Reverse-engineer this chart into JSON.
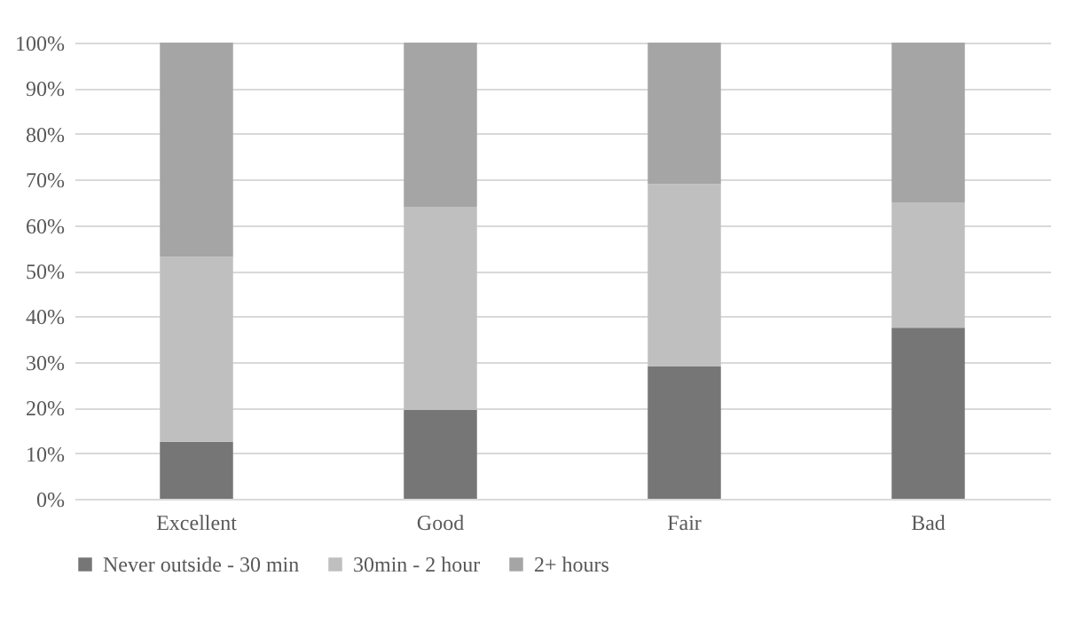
{
  "chart_data": {
    "type": "bar",
    "stacked": true,
    "categories": [
      "Excellent",
      "Good",
      "Fair",
      "Bad"
    ],
    "series": [
      {
        "name": "Never outside - 30 min",
        "color": "#767676",
        "values": [
          12.5,
          19.5,
          29,
          37.5
        ]
      },
      {
        "name": "30min - 2 hour",
        "color": "#bfbfbf",
        "values": [
          40.5,
          44.5,
          40,
          27.5
        ]
      },
      {
        "name": "2+ hours",
        "color": "#a5a5a5",
        "values": [
          47,
          36,
          31,
          35
        ]
      }
    ],
    "ylim": [
      0,
      100
    ],
    "yticks": [
      {
        "value": 0,
        "label": "0%"
      },
      {
        "value": 10,
        "label": "10%"
      },
      {
        "value": 20,
        "label": "20%"
      },
      {
        "value": 30,
        "label": "30%"
      },
      {
        "value": 40,
        "label": "40%"
      },
      {
        "value": 50,
        "label": "50%"
      },
      {
        "value": 60,
        "label": "60%"
      },
      {
        "value": 70,
        "label": "70%"
      },
      {
        "value": 80,
        "label": "80%"
      },
      {
        "value": 90,
        "label": "90%"
      },
      {
        "value": 100,
        "label": "100%"
      }
    ],
    "grid": "y",
    "legend": "bottom"
  }
}
